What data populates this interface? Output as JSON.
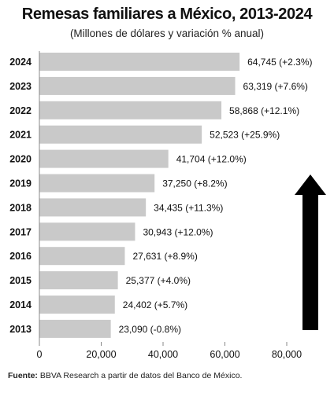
{
  "chart_data": {
    "type": "bar",
    "orientation": "horizontal",
    "title": "Remesas familiares a México, 2013-2024",
    "subtitle": "(Millones de dólares y variación % anual)",
    "categories": [
      "2024",
      "2023",
      "2022",
      "2021",
      "2020",
      "2019",
      "2018",
      "2017",
      "2016",
      "2015",
      "2014",
      "2013"
    ],
    "values": [
      64745,
      63319,
      58868,
      52523,
      41704,
      37250,
      34435,
      30943,
      27631,
      25377,
      24402,
      23090
    ],
    "data_labels": [
      "64,745 (+2.3%)",
      "63,319 (+7.6%)",
      "58,868 (+12.1%)",
      "52,523 (+25.9%)",
      "41,704 (+12.0%)",
      "37,250 (+8.2%)",
      "34,435 (+11.3%)",
      "30,943 (+12.0%)",
      "27,631 (+8.9%)",
      "25,377 (+4.0%)",
      "24,402 (+5.7%)",
      "23,090 (-0.8%)"
    ],
    "xlim": [
      0,
      90000
    ],
    "xticks": [
      0,
      20000,
      40000,
      60000,
      80000
    ],
    "xtick_labels": [
      "0",
      "20,000",
      "40,000",
      "60,000",
      "80,000"
    ],
    "grid": false,
    "bar_color": "#c9c9c9",
    "annotation": "upward-arrow"
  },
  "source": {
    "label": "Fuente:",
    "text": "BBVA Research a partir de datos del Banco de México."
  },
  "colors": {
    "bar": "#c9c9c9",
    "arrow": "#000000",
    "text": "#111111"
  }
}
